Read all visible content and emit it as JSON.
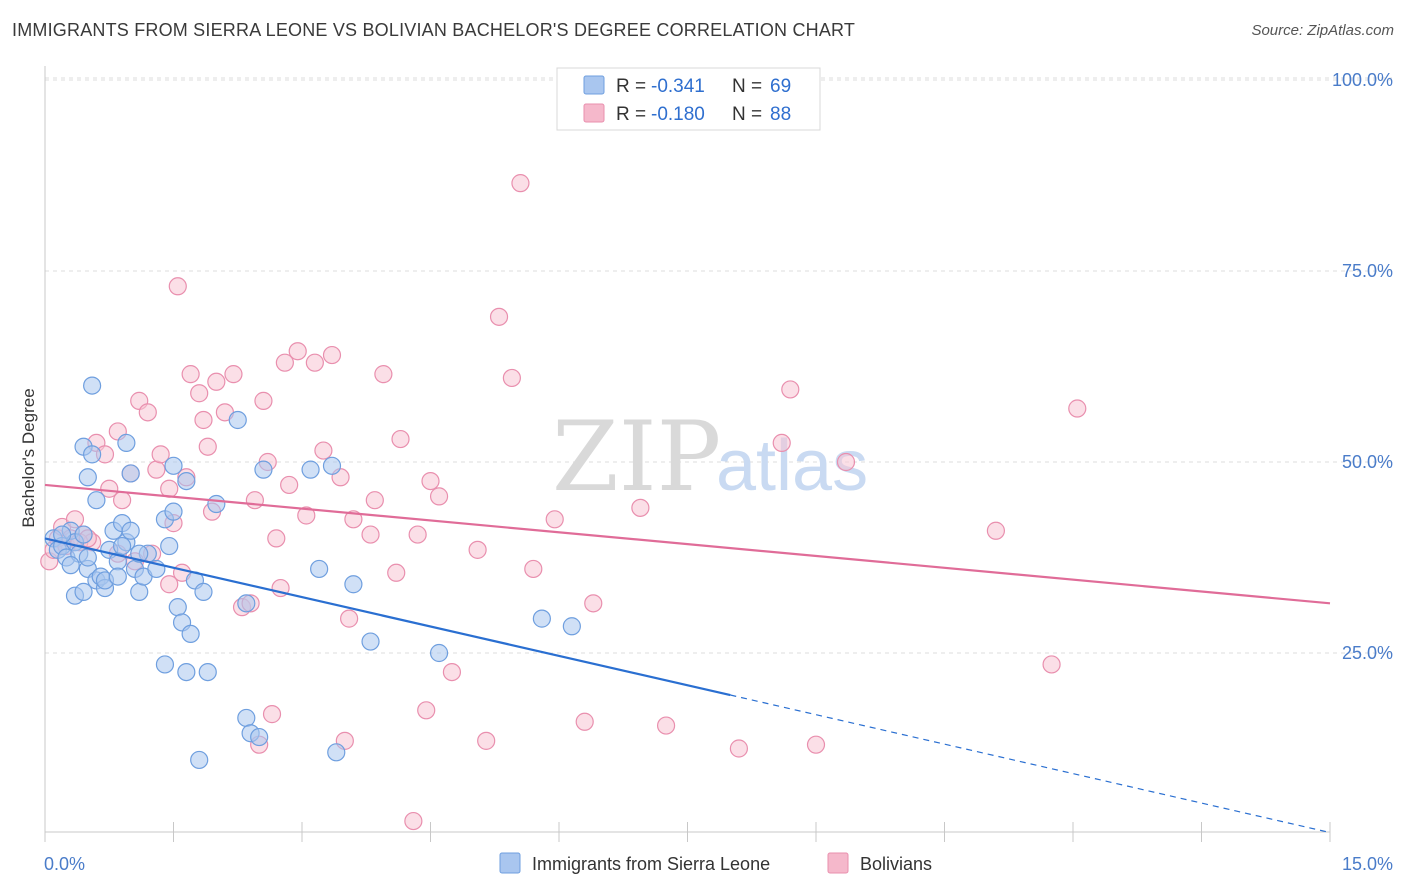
{
  "header": {
    "title": "IMMIGRANTS FROM SIERRA LEONE VS BOLIVIAN BACHELOR'S DEGREE CORRELATION CHART",
    "source": "Source: ZipAtlas.com"
  },
  "watermark": {
    "zip": "ZIP",
    "atlas": "atlas"
  },
  "legend": {
    "items": [
      {
        "r_label": "R =",
        "r_value": "-0.341",
        "n_label": "N =",
        "n_value": "69",
        "color": "#a9c6ef"
      },
      {
        "r_label": "R =",
        "r_value": "-0.180",
        "n_label": "N =",
        "n_value": "88",
        "color": "#f5b8cb"
      }
    ]
  },
  "bottom_legend": [
    {
      "label": "Immigrants from Sierra Leone",
      "color": "#a9c6ef"
    },
    {
      "label": "Bolivians",
      "color": "#f5b8cb"
    }
  ],
  "colors": {
    "blue_fill": "#a9c6ef",
    "blue_stroke": "#6f9fdf",
    "blue_line": "#2a6fd1",
    "pink_fill": "#f7c4d4",
    "pink_stroke": "#e98fae",
    "pink_line": "#e06c98",
    "grid": "#dddddd",
    "axis_tick_text": "#4a7cc9"
  },
  "chart_data": {
    "type": "scatter",
    "title": "IMMIGRANTS FROM SIERRA LEONE VS BOLIVIAN BACHELOR'S DEGREE CORRELATION CHART",
    "xlabel": "",
    "ylabel": "Bachelor's Degree",
    "xlim": [
      0,
      15
    ],
    "ylim": [
      0,
      105
    ],
    "x_ticks": [
      {
        "value": 0,
        "label": "0.0%"
      },
      {
        "value": 15,
        "label": "15.0%"
      }
    ],
    "y_ticks": [
      {
        "value": 25,
        "label": "25.0%"
      },
      {
        "value": 50,
        "label": "50.0%"
      },
      {
        "value": 75,
        "label": "75.0%"
      },
      {
        "value": 100,
        "label": "100.0%"
      }
    ],
    "grid": true,
    "legend_position": "top-center",
    "series": [
      {
        "name": "Immigrants from Sierra Leone",
        "r": -0.341,
        "n": 69,
        "trend": {
          "x0": 0,
          "y0": 40,
          "x_solid_end": 8,
          "y_solid_end": 19.5,
          "x_dash_end": 15,
          "y_dash_end": 1.5
        },
        "points": [
          [
            0.1,
            40
          ],
          [
            0.15,
            38.5
          ],
          [
            0.2,
            39
          ],
          [
            0.25,
            37.5
          ],
          [
            0.3,
            41
          ],
          [
            0.35,
            39.5
          ],
          [
            0.4,
            38
          ],
          [
            0.2,
            40.5
          ],
          [
            0.3,
            36.5
          ],
          [
            0.35,
            32.5
          ],
          [
            0.45,
            33
          ],
          [
            0.5,
            36
          ],
          [
            0.45,
            40.5
          ],
          [
            0.5,
            37.5
          ],
          [
            0.6,
            34.5
          ],
          [
            0.65,
            35
          ],
          [
            0.7,
            33.5
          ],
          [
            0.75,
            38.5
          ],
          [
            0.8,
            41
          ],
          [
            0.85,
            37
          ],
          [
            0.9,
            42
          ],
          [
            0.95,
            39.5
          ],
          [
            1.0,
            41
          ],
          [
            1.05,
            36
          ],
          [
            1.1,
            33
          ],
          [
            1.15,
            35
          ],
          [
            1.2,
            38
          ],
          [
            1.3,
            36
          ],
          [
            1.4,
            42.5
          ],
          [
            1.45,
            39
          ],
          [
            1.5,
            43.5
          ],
          [
            1.55,
            31
          ],
          [
            1.6,
            29
          ],
          [
            1.7,
            27.5
          ],
          [
            1.75,
            34.5
          ],
          [
            1.85,
            33
          ],
          [
            1.9,
            22.5
          ],
          [
            1.4,
            23.5
          ],
          [
            1.65,
            22.5
          ],
          [
            2.0,
            44.5
          ],
          [
            1.65,
            47.5
          ],
          [
            1.5,
            49.5
          ],
          [
            0.6,
            45
          ],
          [
            0.5,
            48
          ],
          [
            0.45,
            52
          ],
          [
            0.55,
            51
          ],
          [
            0.55,
            60
          ],
          [
            0.95,
            52.5
          ],
          [
            1.0,
            48.5
          ],
          [
            2.25,
            55.5
          ],
          [
            2.55,
            49
          ],
          [
            3.1,
            49
          ],
          [
            3.35,
            49.5
          ],
          [
            3.2,
            36
          ],
          [
            3.6,
            34
          ],
          [
            3.8,
            26.5
          ],
          [
            4.6,
            25
          ],
          [
            5.8,
            29.5
          ],
          [
            6.15,
            28.5
          ],
          [
            2.35,
            31.5
          ],
          [
            2.35,
            16.5
          ],
          [
            2.4,
            14.5
          ],
          [
            2.5,
            14
          ],
          [
            3.4,
            12
          ],
          [
            1.8,
            11
          ],
          [
            1.1,
            38
          ],
          [
            0.7,
            34.5
          ],
          [
            0.9,
            39
          ],
          [
            0.85,
            35
          ]
        ]
      },
      {
        "name": "Bolivians",
        "r": -0.18,
        "n": 88,
        "trend": {
          "x0": 0,
          "y0": 47,
          "x1": 15,
          "y1": 31.5
        },
        "points": [
          [
            0.05,
            37
          ],
          [
            0.1,
            38.5
          ],
          [
            0.15,
            40
          ],
          [
            0.2,
            41.5
          ],
          [
            0.25,
            39
          ],
          [
            0.3,
            40
          ],
          [
            0.35,
            42.5
          ],
          [
            0.45,
            40.5
          ],
          [
            0.55,
            39.5
          ],
          [
            0.6,
            52.5
          ],
          [
            0.7,
            51
          ],
          [
            0.75,
            46.5
          ],
          [
            0.85,
            54
          ],
          [
            0.9,
            45
          ],
          [
            1.0,
            48.5
          ],
          [
            1.1,
            58
          ],
          [
            1.2,
            56.5
          ],
          [
            1.3,
            49
          ],
          [
            1.35,
            51
          ],
          [
            1.45,
            46.5
          ],
          [
            1.5,
            42
          ],
          [
            1.55,
            73
          ],
          [
            1.65,
            48
          ],
          [
            1.7,
            61.5
          ],
          [
            1.8,
            59
          ],
          [
            1.85,
            55.5
          ],
          [
            1.9,
            52
          ],
          [
            1.95,
            43.5
          ],
          [
            2.0,
            60.5
          ],
          [
            2.1,
            56.5
          ],
          [
            2.2,
            61.5
          ],
          [
            2.3,
            31
          ],
          [
            2.45,
            45
          ],
          [
            2.55,
            58
          ],
          [
            2.6,
            50
          ],
          [
            2.75,
            33.5
          ],
          [
            2.8,
            63
          ],
          [
            2.85,
            47
          ],
          [
            2.95,
            64.5
          ],
          [
            3.05,
            43
          ],
          [
            3.15,
            63
          ],
          [
            3.25,
            51.5
          ],
          [
            3.35,
            64
          ],
          [
            3.45,
            48
          ],
          [
            3.55,
            29.5
          ],
          [
            3.6,
            42.5
          ],
          [
            3.8,
            40.5
          ],
          [
            3.85,
            45
          ],
          [
            3.95,
            61.5
          ],
          [
            4.1,
            35.5
          ],
          [
            4.15,
            53
          ],
          [
            4.35,
            40.5
          ],
          [
            4.5,
            47.5
          ],
          [
            4.6,
            45.5
          ],
          [
            4.75,
            22.5
          ],
          [
            5.05,
            38.5
          ],
          [
            5.3,
            69
          ],
          [
            5.45,
            61
          ],
          [
            5.55,
            86.5
          ],
          [
            5.7,
            36
          ],
          [
            5.95,
            42.5
          ],
          [
            6.4,
            31.5
          ],
          [
            6.3,
            16
          ],
          [
            6.95,
            44
          ],
          [
            7.25,
            15.5
          ],
          [
            8.1,
            12.5
          ],
          [
            8.6,
            52.5
          ],
          [
            8.7,
            59.5
          ],
          [
            9.0,
            13
          ],
          [
            9.35,
            50
          ],
          [
            11.1,
            41
          ],
          [
            11.75,
            23.5
          ],
          [
            12.05,
            57
          ],
          [
            1.45,
            34
          ],
          [
            1.6,
            35.5
          ],
          [
            2.4,
            31.5
          ],
          [
            2.65,
            17
          ],
          [
            2.5,
            13
          ],
          [
            3.5,
            13.5
          ],
          [
            4.45,
            17.5
          ],
          [
            5.15,
            13.5
          ],
          [
            4.3,
            3
          ],
          [
            0.85,
            38
          ],
          [
            1.25,
            38
          ],
          [
            0.4,
            39.5
          ],
          [
            0.5,
            40
          ],
          [
            1.05,
            37
          ],
          [
            2.7,
            40
          ]
        ]
      }
    ]
  }
}
